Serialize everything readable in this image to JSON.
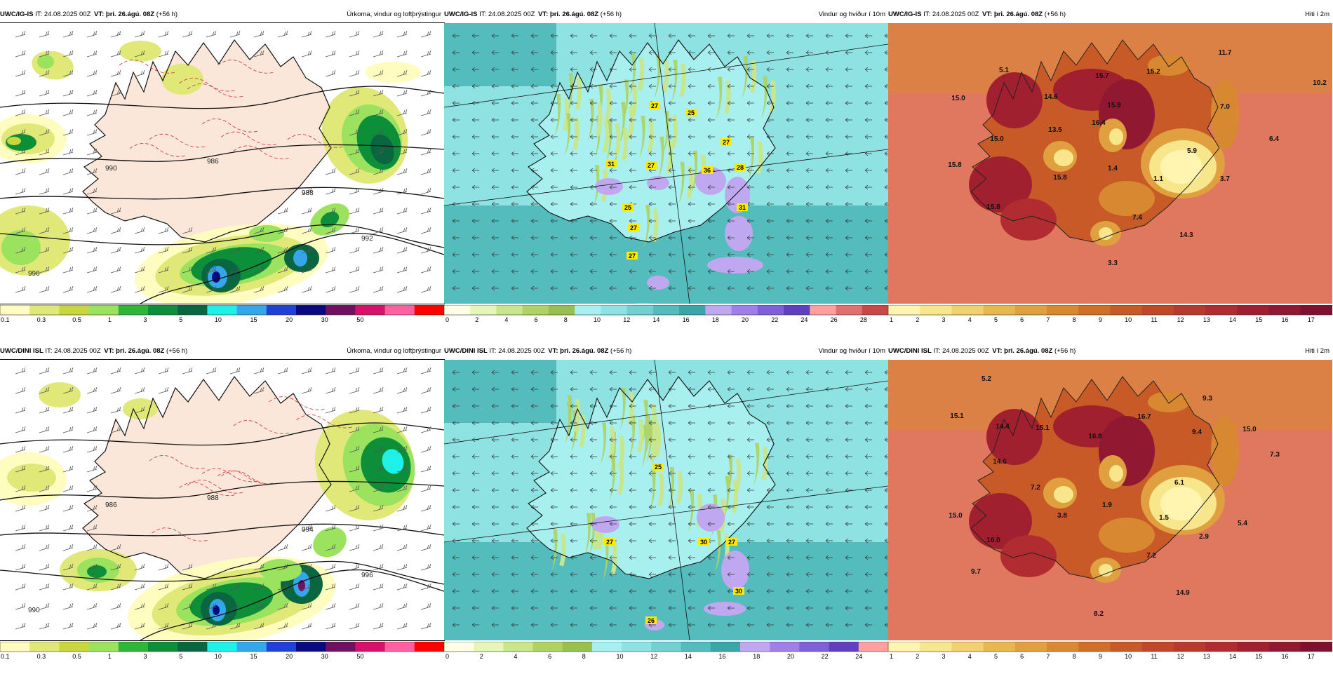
{
  "panels": [
    {
      "model": "UWC/IG-IS",
      "it_label": "IT:",
      "it": "24.08.2025 00Z",
      "vt_label": "VT:",
      "vt": "þri. 26.ágú. 08Z",
      "lead": "(+56 h)",
      "field": "Úrkoma, vindur og loftþrýstingur",
      "type": "precip",
      "colors": [
        "#fffcc0",
        "#e0e878",
        "#c8d640",
        "#9be25f",
        "#2fb537",
        "#0d8f3a",
        "#0a6640",
        "#1ff0e8",
        "#35a7e8",
        "#2040d8",
        "#0a0a80",
        "#701060",
        "#d8106a",
        "#ff60a0",
        "#ff0000"
      ],
      "tick_labels": [
        "0.1",
        "0.3",
        "0.5",
        "1",
        "3",
        "5",
        "10",
        "15",
        "20",
        "30",
        "50"
      ],
      "value_labels": [],
      "pressure_labels": [
        "996",
        "990",
        "986",
        "988",
        "992"
      ]
    },
    {
      "model": "UWC/IG-IS",
      "it_label": "IT:",
      "it": "24.08.2025 00Z",
      "vt_label": "VT:",
      "vt": "þri. 26.ágú. 08Z",
      "lead": "(+56 h)",
      "field": "Vindur og hviður í 10m",
      "type": "wind",
      "colors": [
        "#ffffe8",
        "#e6f5b8",
        "#c8e68c",
        "#aed264",
        "#96c050",
        "#a8f0f0",
        "#8ee2e2",
        "#72d0d0",
        "#54bcbc",
        "#3aa6a6",
        "#c0a8f0",
        "#a080e8",
        "#8060d8",
        "#6040c0",
        "#ffa0a0",
        "#e07070",
        "#c84848"
      ],
      "tick_labels": [
        "0",
        "2",
        "4",
        "6",
        "8",
        "10",
        "12",
        "14",
        "16",
        "18",
        "20",
        "22",
        "24",
        "26",
        "28"
      ],
      "value_labels": [
        "27",
        "25",
        "27",
        "31",
        "27",
        "36",
        "28",
        "31",
        "25",
        "27",
        "27"
      ],
      "pressure_labels": []
    },
    {
      "model": "UWC/IG-IS",
      "it_label": "IT:",
      "it": "24.08.2025 00Z",
      "vt_label": "VT:",
      "vt": "þri. 26.ágú. 08Z",
      "lead": "(+56 h)",
      "field": "Hiti í 2m",
      "type": "temp",
      "colors": [
        "#fff5b0",
        "#f8e68c",
        "#f0d070",
        "#e8b850",
        "#e0a040",
        "#d88830",
        "#d07028",
        "#c85a28",
        "#c04828",
        "#b83a2c",
        "#b02c30",
        "#a02030",
        "#901830",
        "#801030"
      ],
      "tick_labels": [
        "1",
        "2",
        "3",
        "4",
        "5",
        "6",
        "7",
        "8",
        "9",
        "10",
        "11",
        "12",
        "13",
        "14",
        "15",
        "16",
        "17"
      ],
      "value_labels": [
        "5.1",
        "11.7",
        "15.7",
        "15.2",
        "10.2",
        "15.0",
        "14.6",
        "15.9",
        "7.0",
        "16.4",
        "13.5",
        "15.0",
        "5.9",
        "6.4",
        "15.8",
        "15.8",
        "1.4",
        "1.1",
        "3.7",
        "15.8",
        "7.4",
        "14.3",
        "3.3"
      ],
      "pressure_labels": []
    },
    {
      "model": "UWC/DINI ISL",
      "it_label": "IT:",
      "it": "24.08.2025 00Z",
      "vt_label": "VT:",
      "vt": "þri. 26.ágú. 08Z",
      "lead": "(+56 h)",
      "field": "Úrkoma, vindur og loftþrýstingur",
      "type": "precip",
      "colors": [
        "#fffcc0",
        "#e0e878",
        "#c8d640",
        "#9be25f",
        "#2fb537",
        "#0d8f3a",
        "#0a6640",
        "#1ff0e8",
        "#35a7e8",
        "#2040d8",
        "#0a0a80",
        "#701060",
        "#d8106a",
        "#ff60a0",
        "#ff0000"
      ],
      "tick_labels": [
        "0.1",
        "0.3",
        "0.5",
        "1",
        "3",
        "5",
        "10",
        "15",
        "20",
        "30",
        "50"
      ],
      "value_labels": [],
      "pressure_labels": [
        "990",
        "986",
        "988",
        "994",
        "996"
      ]
    },
    {
      "model": "UWC/DINI ISL",
      "it_label": "IT:",
      "it": "24.08.2025 00Z",
      "vt_label": "VT:",
      "vt": "þri. 26.ágú. 08Z",
      "lead": "(+56 h)",
      "field": "Vindur og hviður í 10m",
      "type": "wind",
      "colors": [
        "#ffffe8",
        "#e6f5b8",
        "#c8e68c",
        "#aed264",
        "#96c050",
        "#a8f0f0",
        "#8ee2e2",
        "#72d0d0",
        "#54bcbc",
        "#3aa6a6",
        "#c0a8f0",
        "#a080e8",
        "#8060d8",
        "#6040c0",
        "#ffa0a0"
      ],
      "tick_labels": [
        "0",
        "2",
        "4",
        "6",
        "8",
        "10",
        "12",
        "14",
        "16",
        "18",
        "20",
        "22",
        "24"
      ],
      "value_labels": [
        "25",
        "27",
        "30",
        "27",
        "30",
        "26"
      ],
      "pressure_labels": []
    },
    {
      "model": "UWC/DINI ISL",
      "it_label": "IT:",
      "it": "24.08.2025 00Z",
      "vt_label": "VT:",
      "vt": "þri. 26.ágú. 08Z",
      "lead": "(+56 h)",
      "field": "Hiti í 2m",
      "type": "temp",
      "colors": [
        "#fff5b0",
        "#f8e68c",
        "#f0d070",
        "#e8b850",
        "#e0a040",
        "#d88830",
        "#d07028",
        "#c85a28",
        "#c04828",
        "#b83a2c",
        "#b02c30",
        "#a02030",
        "#901830",
        "#801030"
      ],
      "tick_labels": [
        "1",
        "2",
        "3",
        "4",
        "5",
        "6",
        "7",
        "8",
        "9",
        "10",
        "11",
        "12",
        "13",
        "14",
        "15",
        "16",
        "17"
      ],
      "value_labels": [
        "5.2",
        "9.3",
        "15.1",
        "14.4",
        "15.1",
        "16.7",
        "9.4",
        "15.0",
        "16.8",
        "14.6",
        "7.3",
        "7.2",
        "6.1",
        "3.8",
        "1.9",
        "15.0",
        "1.5",
        "5.4",
        "16.0",
        "2.9",
        "7.2",
        "9.7",
        "14.9",
        "8.2"
      ],
      "pressure_labels": []
    }
  ]
}
